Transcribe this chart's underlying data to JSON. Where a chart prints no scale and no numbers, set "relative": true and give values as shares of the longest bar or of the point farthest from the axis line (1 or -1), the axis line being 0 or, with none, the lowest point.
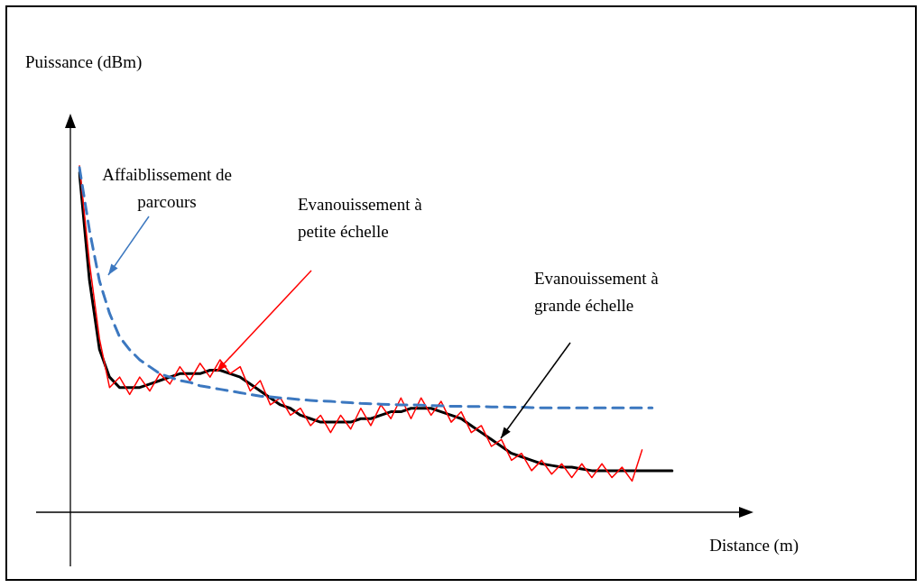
{
  "chart_data": {
    "type": "line",
    "relative": true,
    "xlabel": "Distance (m)",
    "legend": false,
    "marker": "none",
    "annotations": [
      "Puissance (dBm)",
      "Affaiblissement de parcours",
      "Evanouissement à petite échelle",
      "Evanouissement à grande échelle"
    ],
    "categories": [
      null,
      null,
      null,
      null,
      null,
      null,
      null,
      null,
      null,
      null,
      null,
      null,
      null,
      null,
      null,
      null,
      null,
      null,
      null,
      null,
      null,
      null,
      null,
      null,
      null,
      null,
      null,
      null,
      null,
      null,
      null,
      null,
      null,
      null,
      null,
      null,
      null,
      null,
      null,
      null,
      null,
      null,
      null,
      null,
      null,
      null,
      null,
      null,
      null,
      null,
      null,
      null,
      null,
      null,
      null,
      null,
      null,
      null,
      null,
      null
    ],
    "series": [
      {
        "color": "#3c78c0",
        "line_style": "dashed",
        "values": [
          0.995,
          0.814,
          0.667,
          0.574,
          0.506,
          0.469,
          0.44,
          0.42,
          0.4,
          0.39,
          0.38,
          0.375,
          0.365,
          0.36,
          0.355,
          0.35,
          0.345,
          0.34,
          0.335,
          0.333,
          0.33,
          0.328,
          0.325,
          0.323,
          0.321,
          0.32,
          0.318,
          0.316,
          0.314,
          0.313,
          0.312,
          0.311,
          0.31,
          0.31,
          0.309,
          0.308,
          0.307,
          0.306,
          0.306,
          0.305,
          0.305,
          0.304,
          0.304,
          0.303,
          0.303,
          0.302,
          0.301,
          0.301,
          0.301,
          0.301,
          0.301,
          0.301,
          0.301,
          0.301,
          0.301,
          0.301,
          0.301,
          0.301,
          null,
          null
        ]
      },
      {
        "color": "#ff0000",
        "line_style": "solid",
        "values": [
          1.0,
          0.72,
          0.5,
          0.36,
          0.39,
          0.34,
          0.39,
          0.35,
          0.4,
          0.37,
          0.42,
          0.38,
          0.43,
          0.39,
          0.44,
          0.4,
          0.42,
          0.35,
          0.38,
          0.31,
          0.33,
          0.28,
          0.3,
          0.25,
          0.28,
          0.23,
          0.28,
          0.24,
          0.3,
          0.25,
          0.31,
          0.27,
          0.33,
          0.27,
          0.33,
          0.28,
          0.32,
          0.26,
          0.29,
          0.23,
          0.25,
          0.19,
          0.21,
          0.15,
          0.17,
          0.12,
          0.15,
          0.11,
          0.14,
          0.1,
          0.14,
          0.1,
          0.14,
          0.1,
          0.13,
          0.09,
          0.18,
          null,
          null,
          null
        ]
      },
      {
        "color": "#000000",
        "line_style": "solid",
        "values": [
          0.98,
          0.67,
          0.47,
          0.39,
          0.36,
          0.36,
          0.36,
          0.37,
          0.38,
          0.39,
          0.4,
          0.4,
          0.4,
          0.41,
          0.41,
          0.4,
          0.39,
          0.37,
          0.35,
          0.33,
          0.31,
          0.3,
          0.28,
          0.27,
          0.26,
          0.26,
          0.26,
          0.26,
          0.27,
          0.27,
          0.28,
          0.29,
          0.29,
          0.3,
          0.3,
          0.3,
          0.29,
          0.28,
          0.27,
          0.25,
          0.23,
          0.21,
          0.19,
          0.17,
          0.16,
          0.15,
          0.14,
          0.135,
          0.13,
          0.13,
          0.125,
          0.12,
          0.12,
          0.12,
          0.12,
          0.12,
          0.12,
          0.12,
          0.12,
          0.12
        ]
      }
    ]
  }
}
